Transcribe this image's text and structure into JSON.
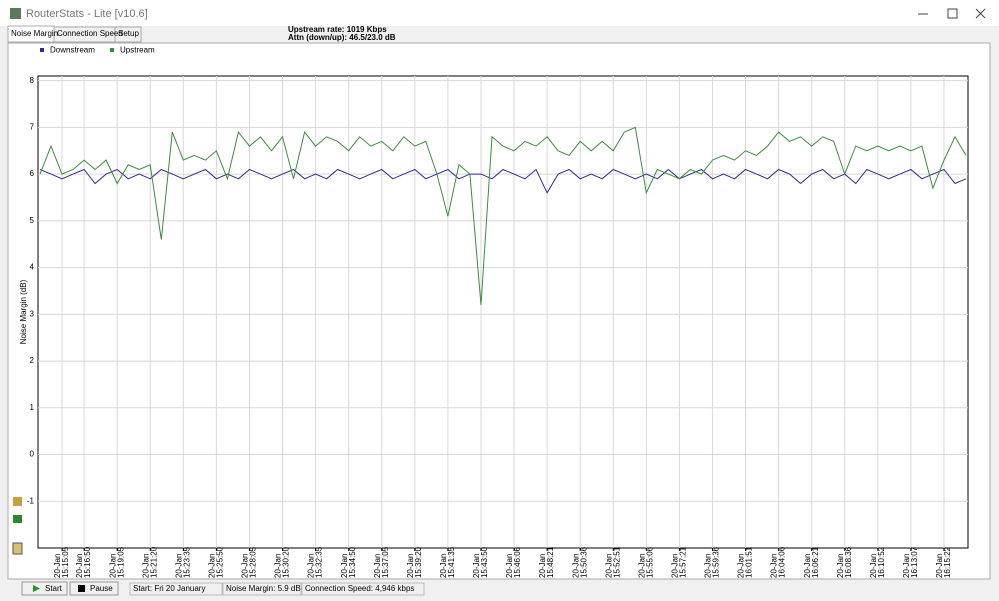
{
  "window": {
    "title": "RouterStats - Lite [v10.6]",
    "tabs": [
      "Noise Margin",
      "Connection Speed",
      "Setup"
    ],
    "header": [
      "Upstream rate: 1019 Kbps",
      "Attn (down/up): 46.5/23.0 dB"
    ]
  },
  "status_bar": {
    "buttons": [
      "Start",
      "Pause"
    ],
    "fields": [
      "Start: Fri 20 January",
      "Noise Margin: 5.9 dB",
      "Connection Speed: 4,946 kbps"
    ]
  },
  "chart_data": {
    "type": "line",
    "y_label": "Noise Margin (dB)",
    "x_date_label": "20-Jan",
    "categories": [
      null,
      null,
      "15:15:05",
      null,
      "15:16:50",
      null,
      null,
      "15:19:05",
      null,
      null,
      "15:21:20",
      null,
      null,
      "15:23:35",
      null,
      null,
      "15:25:50",
      null,
      null,
      "15:28:05",
      null,
      null,
      "15:30:20",
      null,
      null,
      "15:32:35",
      null,
      null,
      "15:34:50",
      null,
      null,
      "15:37:05",
      null,
      null,
      "15:39:20",
      null,
      null,
      "15:41:35",
      null,
      null,
      "15:43:50",
      null,
      null,
      "15:46:06",
      null,
      null,
      "15:48:21",
      null,
      null,
      "15:50:36",
      null,
      null,
      "15:52:51",
      null,
      null,
      "15:55:06",
      null,
      null,
      "15:57:21",
      null,
      null,
      "15:59:36",
      null,
      null,
      "16:01:51",
      null,
      null,
      "16:04:06",
      null,
      null,
      "16:06:21",
      null,
      null,
      "16:08:36",
      null,
      null,
      "16:10:52",
      null,
      null,
      "16:13:07",
      null,
      null,
      "16:15:22",
      null,
      null
    ],
    "series": [
      {
        "name": "Downstream",
        "color": "#2e2e8c",
        "values": [
          6.1,
          6.0,
          5.9,
          6.0,
          6.1,
          5.8,
          6.0,
          6.1,
          5.9,
          6.0,
          5.9,
          6.1,
          6.0,
          5.9,
          6.0,
          6.1,
          5.9,
          6.0,
          5.9,
          6.1,
          6.0,
          5.9,
          6.0,
          6.1,
          5.9,
          6.0,
          5.9,
          6.1,
          6.0,
          5.9,
          6.0,
          6.1,
          5.9,
          6.0,
          6.1,
          5.9,
          6.0,
          6.1,
          5.9,
          6.0,
          6.0,
          5.9,
          6.1,
          6.0,
          5.9,
          6.1,
          5.6,
          6.0,
          6.1,
          5.9,
          6.0,
          5.9,
          6.1,
          6.0,
          5.9,
          6.0,
          5.9,
          6.1,
          5.9,
          6.0,
          6.1,
          5.9,
          6.0,
          5.9,
          6.1,
          6.0,
          5.9,
          6.1,
          6.0,
          5.8,
          6.0,
          6.1,
          5.9,
          6.0,
          5.8,
          6.1,
          6.0,
          5.9,
          6.0,
          6.1,
          5.9,
          6.0,
          6.1,
          5.8,
          5.9
        ]
      },
      {
        "name": "Upstream",
        "color": "#3c8c3c",
        "values": [
          6.0,
          6.6,
          6.0,
          6.1,
          6.3,
          6.1,
          6.3,
          5.8,
          6.2,
          6.1,
          6.2,
          4.6,
          6.9,
          6.3,
          6.4,
          6.3,
          6.5,
          5.9,
          6.9,
          6.6,
          6.8,
          6.5,
          6.8,
          5.9,
          6.9,
          6.6,
          6.8,
          6.7,
          6.5,
          6.8,
          6.6,
          6.7,
          6.5,
          6.8,
          6.6,
          6.7,
          6.0,
          5.1,
          6.2,
          6.0,
          3.2,
          6.8,
          6.6,
          6.5,
          6.7,
          6.6,
          6.8,
          6.5,
          6.4,
          6.7,
          6.5,
          6.7,
          6.5,
          6.9,
          7.0,
          5.6,
          6.1,
          6.0,
          5.9,
          6.1,
          6.0,
          6.3,
          6.4,
          6.3,
          6.5,
          6.4,
          6.6,
          6.9,
          6.7,
          6.8,
          6.6,
          6.8,
          6.7,
          6.0,
          6.6,
          6.5,
          6.6,
          6.5,
          6.6,
          6.5,
          6.6,
          5.7,
          6.3,
          6.8,
          6.4
        ]
      }
    ],
    "ylim": [
      -2,
      8.1
    ],
    "yticks": [
      -1,
      0,
      1,
      2,
      3,
      4,
      5,
      6,
      7,
      8
    ],
    "grid": true,
    "legend": "top-left"
  }
}
